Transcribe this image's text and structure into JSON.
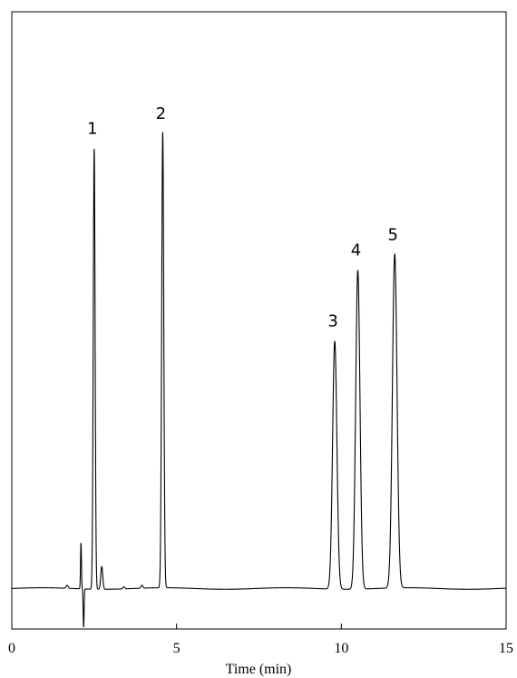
{
  "chart_data": {
    "type": "line",
    "title": "",
    "xlabel": "Time (min)",
    "ylabel": "",
    "xlim": [
      0,
      15
    ],
    "ylim": [
      -0.08,
      1.14
    ],
    "xticks": [
      0,
      5,
      10,
      15
    ],
    "xtick_labels": [
      "0",
      "5",
      "10",
      "15"
    ],
    "grid": false,
    "legend": "none",
    "baseline": 0,
    "peaks": [
      {
        "label": "1",
        "time": 2.5,
        "height": 0.87
      },
      {
        "label": "2",
        "time": 4.58,
        "height": 0.9
      },
      {
        "label": "3",
        "time": 9.8,
        "height": 0.49
      },
      {
        "label": "4",
        "time": 10.5,
        "height": 0.63
      },
      {
        "label": "5",
        "time": 11.62,
        "height": 0.66
      }
    ],
    "minor_features": [
      {
        "time": 1.68,
        "height": 0.006
      },
      {
        "time": 2.1,
        "height": 0.09
      },
      {
        "time": 2.18,
        "height": -0.075
      },
      {
        "time": 2.73,
        "height": 0.045
      },
      {
        "time": 3.4,
        "height": 0.004
      },
      {
        "time": 3.95,
        "height": 0.006
      }
    ],
    "colors": {
      "line": "#000000",
      "frame": "#000000"
    }
  }
}
